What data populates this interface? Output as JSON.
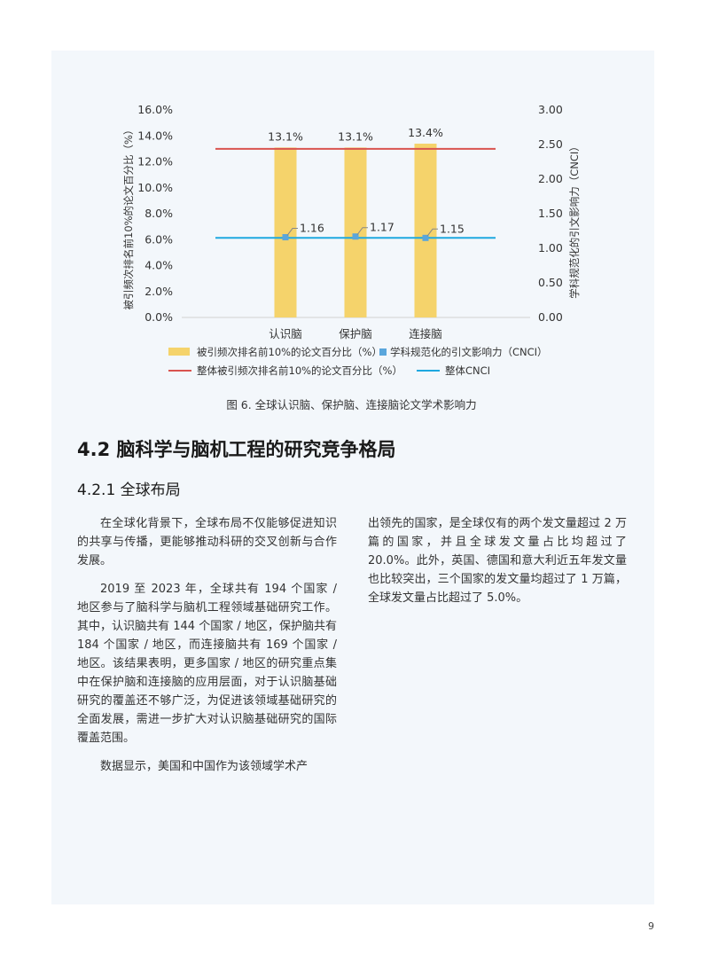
{
  "chart_data": {
    "type": "bar",
    "categories": [
      "认识脑",
      "保护脑",
      "连接脑"
    ],
    "series": [
      {
        "name": "被引频次排名前10%的论文百分比（%）",
        "type": "bar",
        "axis": "left",
        "values": [
          13.1,
          13.1,
          13.4
        ],
        "labels": [
          "13.1%",
          "13.1%",
          "13.4%"
        ],
        "color": "#f5d36b"
      },
      {
        "name": "学科规范化的引文影响力（CNCI）",
        "type": "point",
        "axis": "right",
        "values": [
          1.16,
          1.17,
          1.15
        ],
        "labels": [
          "1.16",
          "1.17",
          "1.15"
        ],
        "color": "#5aa6dc"
      },
      {
        "name": "整体被引频次排名前10%的论文百分比（%）",
        "type": "hline",
        "axis": "left",
        "value": 13.0,
        "color": "#d9534f"
      },
      {
        "name": "整体CNCI",
        "type": "hline",
        "axis": "right",
        "value": 1.15,
        "color": "#1ea8e0"
      }
    ],
    "ylabel": "被引频次排名前10%的论文百分比（%）",
    "y2label": "学科规范化的引文影响力（CNCI）",
    "ylim": [
      0,
      16
    ],
    "y2lim": [
      0,
      3
    ],
    "yticks": [
      "0.0%",
      "2.0%",
      "4.0%",
      "6.0%",
      "8.0%",
      "10.0%",
      "12.0%",
      "14.0%",
      "16.0%"
    ],
    "y2ticks": [
      "0.00",
      "0.50",
      "1.00",
      "1.50",
      "2.00",
      "2.50",
      "3.00"
    ],
    "grid": false,
    "legend_position": "bottom"
  },
  "caption": "图 6. 全球认识脑、保护脑、连接脑论文学术影响力",
  "section_title": "4.2 脑科学与脑机工程的研究竞争格局",
  "subsection_title": "4.2.1 全球布局",
  "left_paragraphs": [
    "在全球化背景下，全球布局不仅能够促进知识的共享与传播，更能够推动科研的交叉创新与合作发展。",
    "2019 至 2023 年，全球共有 194 个国家 / 地区参与了脑科学与脑机工程领域基础研究工作。其中，认识脑共有 144 个国家 / 地区，保护脑共有 184 个国家 / 地区，而连接脑共有 169 个国家 / 地区。该结果表明，更多国家 / 地区的研究重点集中在保护脑和连接脑的应用层面，对于认识脑基础研究的覆盖还不够广泛，为促进该领域基础研究的全面发展，需进一步扩大对认识脑基础研究的国际覆盖范围。",
    "数据显示，美国和中国作为该领域学术产"
  ],
  "right_paragraph": "出领先的国家，是全球仅有的两个发文量超过 2 万篇的国家，并且全球发文量占比均超过了 20.0%。此外，英国、德国和意大利近五年发文量也比较突出，三个国家的发文量均超过了 1 万篇，全球发文量占比超过了 5.0%。",
  "page_number": "9"
}
